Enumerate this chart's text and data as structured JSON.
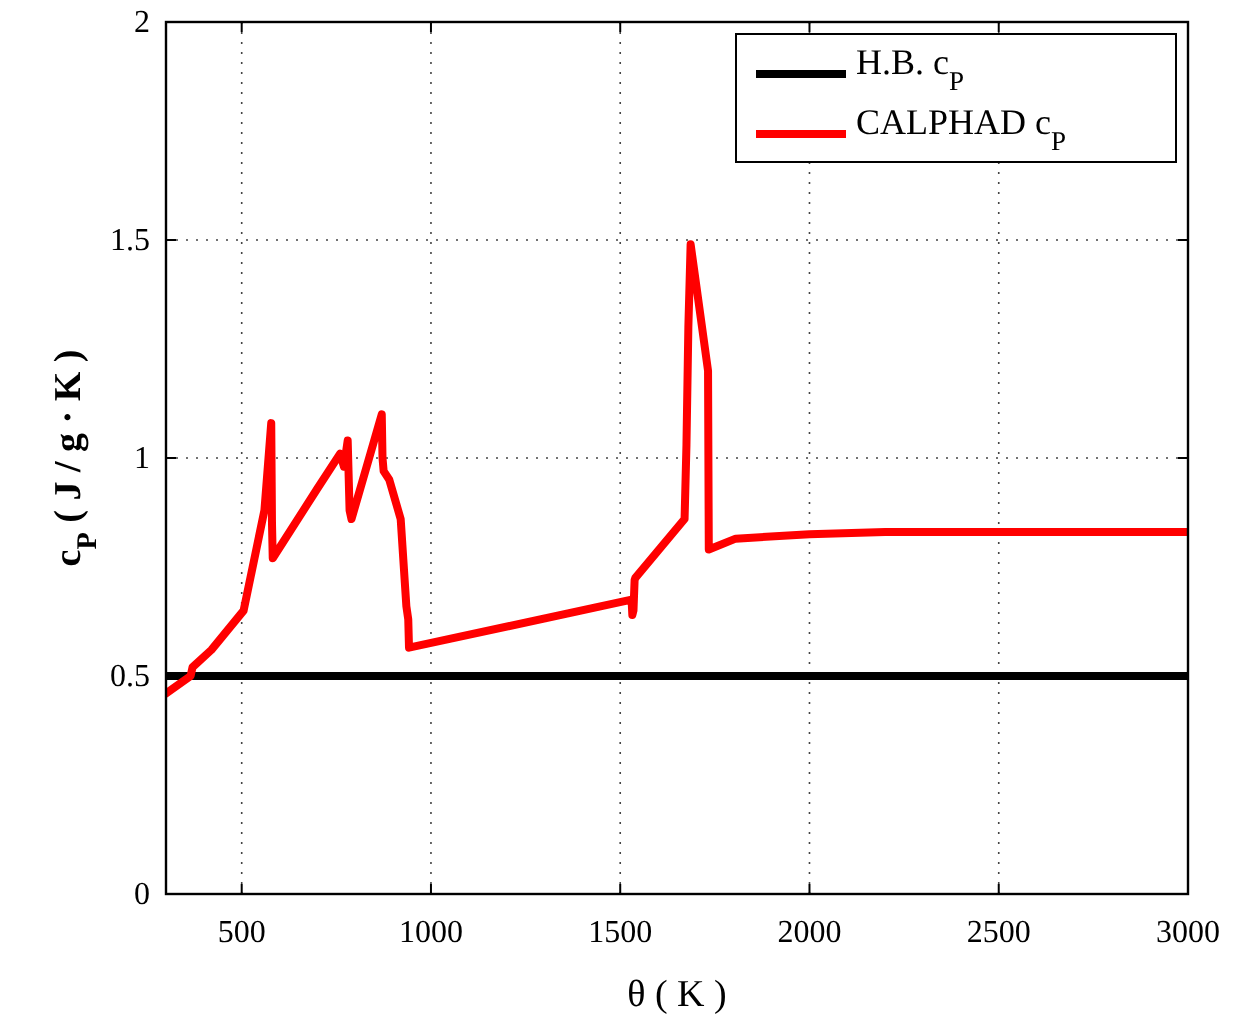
{
  "chart_data": {
    "type": "line",
    "xlabel": "θ ( K )",
    "ylabel": "c$_{P}$ ( J / g · K )",
    "xlim": [
      300,
      3000
    ],
    "ylim": [
      0,
      2
    ],
    "xticks": [
      500,
      1000,
      1500,
      2000,
      2500,
      3000
    ],
    "yticks": [
      0,
      0.5,
      1,
      1.5,
      2
    ],
    "grid": true,
    "legend": "top right",
    "marker": "none",
    "line_style": "solid",
    "series": [
      {
        "name": "H.B. c$_{P}$",
        "color": "#000000",
        "x": [
          300,
          3000
        ],
        "values": [
          0.5,
          0.5
        ]
      },
      {
        "name": "CALPHAD  c$_{P}$",
        "color": "#ff0000",
        "x": [
          300,
          365,
          370,
          420,
          505,
          560,
          578,
          580,
          582,
          700,
          760,
          770,
          780,
          785,
          790,
          870,
          872,
          875,
          890,
          920,
          935,
          940,
          942,
          1530,
          1532,
          1535,
          1538,
          1540,
          1670,
          1675,
          1680,
          1686,
          1732,
          1734,
          1805,
          2000,
          2200,
          2500,
          3000
        ],
        "values": [
          0.46,
          0.5,
          0.52,
          0.56,
          0.65,
          0.88,
          1.08,
          0.85,
          0.77,
          0.93,
          1.01,
          0.98,
          1.04,
          0.88,
          0.86,
          1.1,
          1.0,
          0.97,
          0.95,
          0.86,
          0.66,
          0.63,
          0.565,
          0.675,
          0.64,
          0.65,
          0.72,
          0.725,
          0.86,
          1.03,
          1.3,
          1.49,
          1.2,
          0.79,
          0.815,
          0.825,
          0.83,
          0.83,
          0.83
        ]
      }
    ]
  }
}
